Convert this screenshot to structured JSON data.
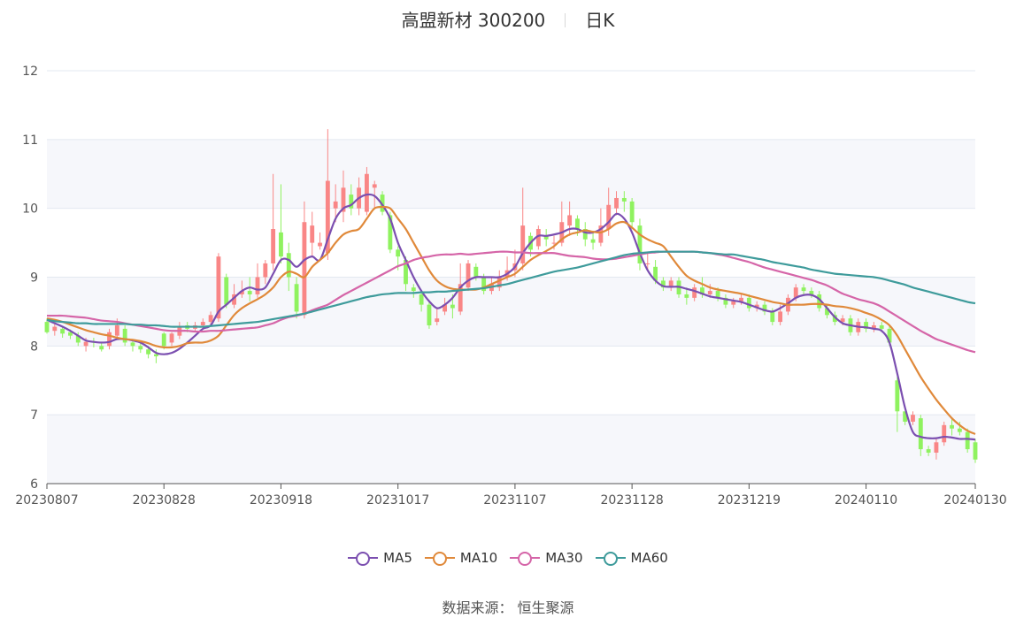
{
  "title": {
    "name": "高盟新材 300200",
    "period": "日K"
  },
  "source": "数据来源： 恒生聚源",
  "colors": {
    "up": "#f98686",
    "down": "#8ff25f",
    "grid": "#e3e8f0",
    "band": "#f6f7fb"
  },
  "legend": [
    {
      "label": "MA5",
      "color": "#7b4fb0"
    },
    {
      "label": "MA10",
      "color": "#e0893a"
    },
    {
      "label": "MA30",
      "color": "#d565a8"
    },
    {
      "label": "MA60",
      "color": "#3e9b9b"
    }
  ],
  "chart_data": {
    "type": "candlestick",
    "title": "高盟新材 300200",
    "subtitle": "日K",
    "ylim": [
      6,
      12
    ],
    "yticks": [
      "6",
      "7",
      "8",
      "9",
      "10",
      "11",
      "12"
    ],
    "xticks": [
      {
        "label": "20230807",
        "index": 0
      },
      {
        "label": "20230828",
        "index": 15
      },
      {
        "label": "20230918",
        "index": 30
      },
      {
        "label": "20231017",
        "index": 45
      },
      {
        "label": "20231107",
        "index": 60
      },
      {
        "label": "20231128",
        "index": 75
      },
      {
        "label": "20231219",
        "index": 90
      },
      {
        "label": "20240110",
        "index": 105
      },
      {
        "label": "20240130",
        "index": 119
      }
    ],
    "ohlc": [
      [
        8.35,
        8.2,
        8.4,
        8.18
      ],
      [
        8.22,
        8.28,
        8.32,
        8.15
      ],
      [
        8.25,
        8.18,
        8.28,
        8.12
      ],
      [
        8.2,
        8.15,
        8.24,
        8.1
      ],
      [
        8.15,
        8.05,
        8.2,
        8.0
      ],
      [
        8.0,
        8.06,
        8.12,
        7.92
      ],
      [
        8.06,
        8.05,
        8.12,
        7.98
      ],
      [
        8.0,
        7.95,
        8.05,
        7.92
      ],
      [
        8.0,
        8.2,
        8.25,
        7.95
      ],
      [
        8.15,
        8.3,
        8.4,
        8.1
      ],
      [
        8.25,
        8.05,
        8.3,
        8.0
      ],
      [
        8.05,
        8.0,
        8.1,
        7.92
      ],
      [
        8.0,
        7.95,
        8.05,
        7.9
      ],
      [
        7.95,
        7.88,
        8.0,
        7.82
      ],
      [
        7.88,
        7.85,
        7.95,
        7.75
      ],
      [
        8.18,
        8.0,
        8.2,
        7.95
      ],
      [
        8.05,
        8.18,
        8.2,
        8.0
      ],
      [
        8.15,
        8.28,
        8.35,
        8.1
      ],
      [
        8.3,
        8.25,
        8.35,
        8.2
      ],
      [
        8.25,
        8.3,
        8.35,
        8.2
      ],
      [
        8.3,
        8.35,
        8.4,
        8.25
      ],
      [
        8.35,
        8.45,
        8.5,
        8.3
      ],
      [
        8.4,
        9.3,
        9.35,
        8.35
      ],
      [
        9.0,
        8.6,
        9.05,
        8.55
      ],
      [
        8.6,
        8.75,
        8.9,
        8.55
      ],
      [
        8.75,
        8.8,
        8.95,
        8.7
      ],
      [
        8.8,
        8.75,
        9.0,
        8.65
      ],
      [
        8.75,
        9.0,
        9.2,
        8.7
      ],
      [
        9.0,
        9.2,
        9.25,
        8.9
      ],
      [
        9.2,
        9.7,
        10.5,
        9.1
      ],
      [
        9.65,
        9.3,
        10.35,
        9.2
      ],
      [
        9.35,
        9.0,
        9.5,
        8.8
      ],
      [
        8.9,
        8.5,
        9.0,
        8.4
      ],
      [
        8.45,
        9.8,
        10.1,
        8.4
      ],
      [
        9.5,
        9.75,
        9.95,
        9.3
      ],
      [
        9.45,
        9.5,
        9.65,
        9.4
      ],
      [
        9.35,
        10.4,
        11.15,
        9.25
      ],
      [
        10.0,
        10.1,
        10.35,
        9.8
      ],
      [
        9.95,
        10.3,
        10.55,
        9.8
      ],
      [
        10.2,
        10.0,
        10.35,
        9.9
      ],
      [
        10.0,
        10.3,
        10.45,
        9.9
      ],
      [
        9.95,
        10.5,
        10.6,
        9.9
      ],
      [
        10.3,
        10.35,
        10.4,
        10.0
      ],
      [
        10.2,
        9.95,
        10.25,
        9.9
      ],
      [
        9.9,
        9.4,
        9.95,
        9.35
      ],
      [
        9.4,
        9.3,
        9.45,
        9.1
      ],
      [
        9.25,
        8.9,
        9.3,
        8.8
      ],
      [
        8.85,
        8.8,
        8.9,
        8.7
      ],
      [
        8.75,
        8.6,
        8.8,
        8.5
      ],
      [
        8.6,
        8.3,
        8.65,
        8.25
      ],
      [
        8.35,
        8.4,
        8.55,
        8.3
      ],
      [
        8.5,
        8.6,
        8.7,
        8.45
      ],
      [
        8.6,
        8.55,
        8.75,
        8.4
      ],
      [
        8.5,
        8.9,
        9.2,
        8.45
      ],
      [
        8.85,
        9.2,
        9.25,
        8.8
      ],
      [
        9.15,
        9.0,
        9.2,
        8.95
      ],
      [
        9.0,
        8.8,
        9.05,
        8.75
      ],
      [
        8.8,
        8.9,
        9.0,
        8.75
      ],
      [
        8.85,
        9.0,
        9.1,
        8.8
      ],
      [
        9.0,
        9.1,
        9.3,
        8.95
      ],
      [
        9.1,
        9.2,
        9.4,
        9.0
      ],
      [
        9.2,
        9.75,
        10.3,
        9.1
      ],
      [
        9.6,
        9.4,
        9.65,
        9.3
      ],
      [
        9.45,
        9.7,
        9.75,
        9.4
      ],
      [
        9.6,
        9.55,
        9.7,
        9.45
      ],
      [
        9.5,
        9.5,
        9.6,
        9.4
      ],
      [
        9.5,
        9.8,
        10.1,
        9.45
      ],
      [
        9.75,
        9.9,
        10.1,
        9.6
      ],
      [
        9.85,
        9.7,
        9.9,
        9.6
      ],
      [
        9.7,
        9.55,
        9.8,
        9.45
      ],
      [
        9.55,
        9.5,
        9.65,
        9.4
      ],
      [
        9.5,
        9.75,
        10.0,
        9.45
      ],
      [
        9.7,
        10.05,
        10.3,
        9.6
      ],
      [
        10.0,
        10.15,
        10.25,
        9.9
      ],
      [
        10.15,
        10.1,
        10.25,
        9.95
      ],
      [
        10.1,
        9.8,
        10.15,
        9.7
      ],
      [
        9.75,
        9.2,
        9.85,
        9.1
      ],
      [
        9.2,
        9.2,
        9.35,
        9.1
      ],
      [
        9.15,
        8.95,
        9.25,
        8.9
      ],
      [
        8.95,
        8.85,
        9.0,
        8.8
      ],
      [
        8.85,
        8.95,
        9.0,
        8.8
      ],
      [
        8.95,
        8.75,
        9.0,
        8.7
      ],
      [
        8.75,
        8.7,
        8.85,
        8.6
      ],
      [
        8.7,
        8.85,
        8.9,
        8.65
      ],
      [
        8.85,
        8.75,
        9.0,
        8.7
      ],
      [
        8.75,
        8.8,
        8.9,
        8.7
      ],
      [
        8.8,
        8.7,
        8.85,
        8.65
      ],
      [
        8.7,
        8.6,
        8.75,
        8.55
      ],
      [
        8.6,
        8.65,
        8.7,
        8.55
      ],
      [
        8.65,
        8.7,
        8.75,
        8.6
      ],
      [
        8.7,
        8.55,
        8.75,
        8.5
      ],
      [
        8.55,
        8.6,
        8.65,
        8.5
      ],
      [
        8.6,
        8.5,
        8.65,
        8.45
      ],
      [
        8.5,
        8.35,
        8.55,
        8.3
      ],
      [
        8.35,
        8.5,
        8.6,
        8.3
      ],
      [
        8.5,
        8.7,
        8.75,
        8.45
      ],
      [
        8.7,
        8.85,
        8.9,
        8.65
      ],
      [
        8.85,
        8.8,
        8.9,
        8.75
      ],
      [
        8.8,
        8.75,
        8.85,
        8.7
      ],
      [
        8.75,
        8.55,
        8.8,
        8.5
      ],
      [
        8.55,
        8.45,
        8.6,
        8.4
      ],
      [
        8.45,
        8.35,
        8.5,
        8.3
      ],
      [
        8.35,
        8.4,
        8.45,
        8.3
      ],
      [
        8.4,
        8.2,
        8.45,
        8.15
      ],
      [
        8.2,
        8.35,
        8.4,
        8.15
      ],
      [
        8.35,
        8.25,
        8.4,
        8.2
      ],
      [
        8.25,
        8.3,
        8.35,
        8.2
      ],
      [
        8.3,
        8.25,
        8.35,
        8.2
      ],
      [
        8.25,
        8.05,
        8.3,
        8.0
      ],
      [
        7.5,
        7.05,
        7.55,
        6.75
      ],
      [
        7.05,
        6.9,
        7.0,
        6.85
      ],
      [
        6.9,
        7.0,
        7.05,
        6.85
      ],
      [
        6.95,
        6.5,
        7.0,
        6.4
      ],
      [
        6.5,
        6.45,
        6.55,
        6.4
      ],
      [
        6.45,
        6.6,
        6.65,
        6.35
      ],
      [
        6.6,
        6.85,
        6.9,
        6.55
      ],
      [
        6.85,
        6.8,
        6.95,
        6.7
      ],
      [
        6.8,
        6.75,
        6.9,
        6.7
      ],
      [
        6.75,
        6.5,
        6.8,
        6.45
      ],
      [
        6.6,
        6.35,
        6.65,
        6.3
      ]
    ],
    "series": [
      {
        "name": "MA5",
        "color": "#7b4fb0",
        "values": [
          8.38,
          8.33,
          8.28,
          8.22,
          8.15,
          8.08,
          8.06,
          8.05,
          8.06,
          8.1,
          8.1,
          8.08,
          8.05,
          7.98,
          7.9,
          7.88,
          7.9,
          7.96,
          8.05,
          8.15,
          8.25,
          8.3,
          8.5,
          8.6,
          8.7,
          8.8,
          8.85,
          8.82,
          8.85,
          9.05,
          9.25,
          9.25,
          9.15,
          9.25,
          9.3,
          9.25,
          9.55,
          9.85,
          10.0,
          10.05,
          10.15,
          10.2,
          10.18,
          10.05,
          9.85,
          9.5,
          9.25,
          9.0,
          8.8,
          8.65,
          8.55,
          8.6,
          8.7,
          8.85,
          8.95,
          9.0,
          9.0,
          9.0,
          9.0,
          9.05,
          9.15,
          9.35,
          9.5,
          9.6,
          9.6,
          9.62,
          9.65,
          9.7,
          9.7,
          9.65,
          9.65,
          9.7,
          9.8,
          9.92,
          9.85,
          9.65,
          9.35,
          9.1,
          8.95,
          8.87,
          8.86,
          8.86,
          8.83,
          8.8,
          8.76,
          8.72,
          8.7,
          8.68,
          8.66,
          8.64,
          8.6,
          8.56,
          8.52,
          8.5,
          8.55,
          8.62,
          8.7,
          8.74,
          8.74,
          8.68,
          8.55,
          8.42,
          8.33,
          8.3,
          8.28,
          8.27,
          8.25,
          8.22,
          8.05,
          7.6,
          7.1,
          6.75,
          6.68,
          6.66,
          6.66,
          6.68,
          6.67,
          6.65,
          6.65,
          6.64
        ]
      },
      {
        "name": "MA10",
        "color": "#e0893a",
        "values": [
          8.4,
          8.38,
          8.35,
          8.31,
          8.27,
          8.23,
          8.2,
          8.17,
          8.15,
          8.12,
          8.1,
          8.09,
          8.07,
          8.04,
          8.0,
          7.98,
          7.98,
          8.0,
          8.04,
          8.05,
          8.05,
          8.08,
          8.15,
          8.3,
          8.45,
          8.55,
          8.62,
          8.68,
          8.75,
          8.85,
          9.0,
          9.08,
          9.05,
          9.0,
          9.15,
          9.25,
          9.35,
          9.5,
          9.62,
          9.67,
          9.7,
          9.85,
          10.0,
          10.02,
          10.0,
          9.85,
          9.7,
          9.5,
          9.3,
          9.1,
          8.95,
          8.87,
          8.83,
          8.82,
          8.82,
          8.82,
          8.85,
          8.9,
          8.95,
          9.0,
          9.05,
          9.15,
          9.25,
          9.32,
          9.38,
          9.45,
          9.55,
          9.62,
          9.65,
          9.68,
          9.66,
          9.65,
          9.7,
          9.78,
          9.8,
          9.72,
          9.62,
          9.55,
          9.5,
          9.45,
          9.3,
          9.15,
          9.02,
          8.95,
          8.9,
          8.85,
          8.82,
          8.8,
          8.78,
          8.76,
          8.73,
          8.7,
          8.67,
          8.64,
          8.62,
          8.6,
          8.6,
          8.6,
          8.61,
          8.61,
          8.6,
          8.58,
          8.57,
          8.55,
          8.52,
          8.48,
          8.44,
          8.38,
          8.3,
          8.15,
          7.95,
          7.75,
          7.55,
          7.38,
          7.22,
          7.08,
          6.95,
          6.85,
          6.77,
          6.72
        ]
      },
      {
        "name": "MA30",
        "color": "#d565a8",
        "values": [
          8.44,
          8.44,
          8.44,
          8.43,
          8.42,
          8.41,
          8.39,
          8.37,
          8.36,
          8.35,
          8.33,
          8.31,
          8.29,
          8.27,
          8.25,
          8.23,
          8.22,
          8.22,
          8.22,
          8.21,
          8.21,
          8.22,
          8.22,
          8.23,
          8.24,
          8.25,
          8.26,
          8.27,
          8.3,
          8.33,
          8.38,
          8.42,
          8.44,
          8.47,
          8.52,
          8.56,
          8.6,
          8.67,
          8.74,
          8.8,
          8.86,
          8.92,
          8.98,
          9.04,
          9.1,
          9.16,
          9.2,
          9.25,
          9.28,
          9.3,
          9.32,
          9.33,
          9.33,
          9.34,
          9.33,
          9.34,
          9.35,
          9.36,
          9.37,
          9.37,
          9.36,
          9.36,
          9.35,
          9.35,
          9.35,
          9.35,
          9.33,
          9.31,
          9.3,
          9.29,
          9.27,
          9.26,
          9.26,
          9.27,
          9.29,
          9.31,
          9.33,
          9.35,
          9.36,
          9.37,
          9.37,
          9.37,
          9.37,
          9.37,
          9.36,
          9.35,
          9.33,
          9.31,
          9.28,
          9.25,
          9.22,
          9.18,
          9.14,
          9.11,
          9.08,
          9.05,
          9.02,
          8.99,
          8.96,
          8.92,
          8.88,
          8.82,
          8.76,
          8.72,
          8.68,
          8.65,
          8.62,
          8.57,
          8.5,
          8.43,
          8.36,
          8.29,
          8.22,
          8.16,
          8.1,
          8.06,
          8.02,
          7.98,
          7.94,
          7.91
        ]
      },
      {
        "name": "MA60",
        "color": "#3e9b9b",
        "values": [
          8.38,
          8.36,
          8.35,
          8.34,
          8.33,
          8.33,
          8.32,
          8.32,
          8.32,
          8.32,
          8.32,
          8.31,
          8.31,
          8.3,
          8.3,
          8.29,
          8.28,
          8.28,
          8.28,
          8.28,
          8.28,
          8.29,
          8.3,
          8.31,
          8.32,
          8.33,
          8.34,
          8.35,
          8.37,
          8.39,
          8.41,
          8.43,
          8.45,
          8.47,
          8.5,
          8.53,
          8.56,
          8.59,
          8.62,
          8.65,
          8.68,
          8.71,
          8.73,
          8.75,
          8.76,
          8.77,
          8.77,
          8.77,
          8.78,
          8.78,
          8.79,
          8.79,
          8.8,
          8.81,
          8.82,
          8.83,
          8.84,
          8.86,
          8.88,
          8.9,
          8.93,
          8.96,
          8.99,
          9.02,
          9.05,
          9.08,
          9.1,
          9.12,
          9.14,
          9.17,
          9.2,
          9.23,
          9.26,
          9.29,
          9.32,
          9.34,
          9.35,
          9.36,
          9.37,
          9.37,
          9.37,
          9.37,
          9.37,
          9.37,
          9.36,
          9.35,
          9.34,
          9.33,
          9.33,
          9.31,
          9.29,
          9.27,
          9.25,
          9.22,
          9.2,
          9.18,
          9.16,
          9.14,
          9.11,
          9.09,
          9.07,
          9.05,
          9.04,
          9.03,
          9.02,
          9.01,
          9.0,
          8.98,
          8.95,
          8.92,
          8.89,
          8.85,
          8.82,
          8.79,
          8.76,
          8.73,
          8.7,
          8.67,
          8.64,
          8.62
        ]
      }
    ]
  }
}
